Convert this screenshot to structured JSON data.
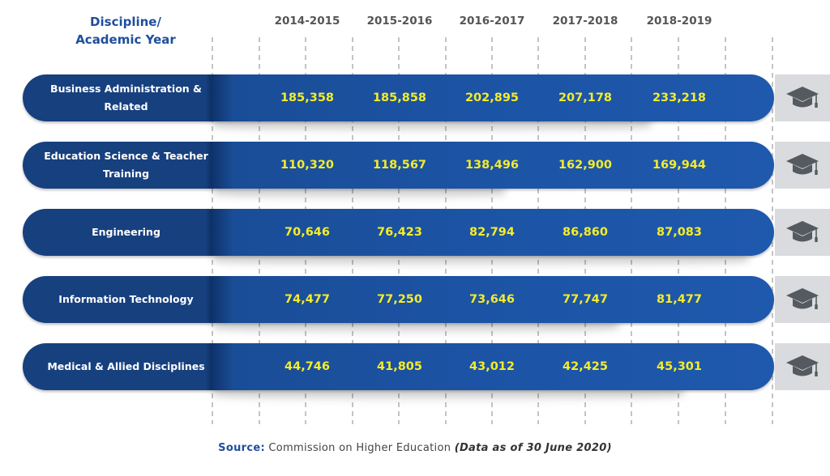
{
  "header": {
    "discipline_line1": "Discipline/",
    "discipline_line2": "Academic Year"
  },
  "chart_data": {
    "type": "table",
    "row_header": "Discipline/ Academic Year",
    "columns": [
      "2014-2015",
      "2015-2016",
      "2016-2017",
      "2017-2018",
      "2018-2019"
    ],
    "rows": [
      {
        "category_lines": [
          "Business Administration &",
          "Related"
        ],
        "values": [
          "185,358",
          "185,858",
          "202,895",
          "207,178",
          "233,218"
        ]
      },
      {
        "category_lines": [
          "Education Science & Teacher",
          "Training"
        ],
        "values": [
          "110,320",
          "118,567",
          "138,496",
          "162,900",
          "169,944"
        ]
      },
      {
        "category_lines": [
          "Engineering"
        ],
        "values": [
          "70,646",
          "76,423",
          "82,794",
          "86,860",
          "87,083"
        ]
      },
      {
        "category_lines": [
          "Information Technology"
        ],
        "values": [
          "74,477",
          "77,250",
          "73,646",
          "77,747",
          "81,477"
        ]
      },
      {
        "category_lines": [
          "Medical & Allied Disciplines"
        ],
        "values": [
          "44,746",
          "41,805",
          "43,012",
          "42,425",
          "45,301"
        ]
      }
    ],
    "icon": "graduation-cap-icon"
  },
  "colors": {
    "bar_blue": "#1c54a6",
    "bar_dark_blue": "#17407f",
    "value_yellow": "#f4ec2b",
    "header_blue": "#1f4e9c",
    "year_gray": "#555555",
    "icon_box_gray": "#d9dbde",
    "icon_dark": "#555a60"
  },
  "source": {
    "label": "Source:",
    "text": "Commission on Higher Education",
    "note_open": "(",
    "note": "Data as of 30 June 2020",
    "note_close": ")"
  }
}
